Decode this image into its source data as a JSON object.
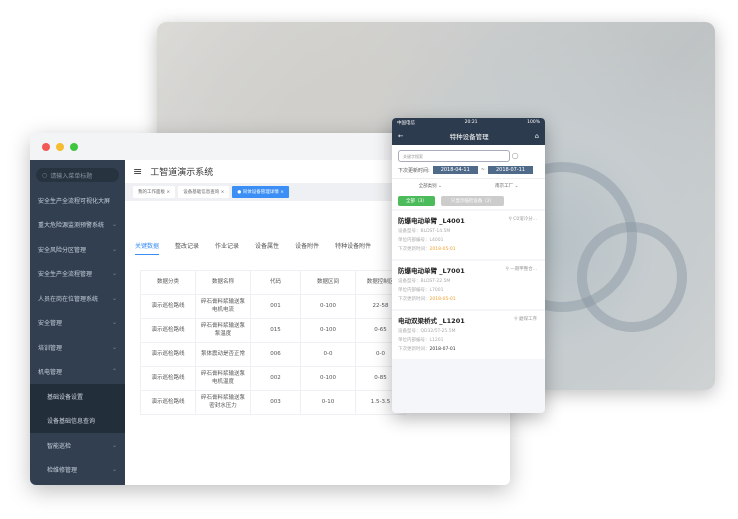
{
  "desktop": {
    "search_placeholder": "请输入菜单标题",
    "menu": [
      {
        "label": "安全生产全流程可视化大屏",
        "chev": ""
      },
      {
        "label": "重大危险源监测预警系统",
        "chev": "⌄"
      },
      {
        "label": "安全风险分区管理",
        "chev": "⌄"
      },
      {
        "label": "安全生产全流程管理",
        "chev": "⌄"
      },
      {
        "label": "人员在岗在位管理系统",
        "chev": "⌄"
      },
      {
        "label": "安全管理",
        "chev": "⌄"
      },
      {
        "label": "培训管理",
        "chev": "⌄"
      },
      {
        "label": "机电管理",
        "chev": "⌃"
      }
    ],
    "submenu": [
      "基础设备设置",
      "设备基础信息查询"
    ],
    "submenu2": [
      {
        "label": "智能巡检",
        "chev": "⌄"
      },
      {
        "label": "检维修管理",
        "chev": "⌄"
      }
    ],
    "title": "工智道演示系统",
    "tabs": [
      "我的工作面板 ×",
      "设备基础信息查询 ×",
      "● 同体设备管理详情 ×"
    ],
    "content_tabs": [
      "关键数据",
      "整改记录",
      "作业记录",
      "设备属性",
      "设备附件",
      "特种设备附件"
    ],
    "table": {
      "headers": [
        "数据分类",
        "数据名称",
        "代码",
        "数据区间",
        "数据控制区"
      ],
      "rows": [
        [
          "演示巡检路线",
          "碎石膏料浆输送泵电机电流",
          "001",
          "0-100",
          "22-58"
        ],
        [
          "演示巡检路线",
          "碎石膏料浆输送泵泵温度",
          "015",
          "0-100",
          "0-65"
        ],
        [
          "演示巡检路线",
          "泵体震动是否正常",
          "006",
          "0-0",
          "0-0"
        ],
        [
          "演示巡检路线",
          "碎石膏料浆输送泵电机温度",
          "002",
          "0-100",
          "0-85"
        ],
        [
          "演示巡检路线",
          "碎石膏料浆输送泵密封水压力",
          "003",
          "0-10",
          "1.5-3.5"
        ]
      ]
    }
  },
  "mobile": {
    "carrier": "中国电信",
    "time": "20:21",
    "battery": "100%",
    "title": "特种设备管理",
    "search_placeholder": "关键字搜索",
    "date_label": "下次更新时间:",
    "date_from": "2018-04-11",
    "date_sep": "~",
    "date_to": "2018-07-11",
    "filter_type": "全部类别 ⌄",
    "filter_site": "南京工厂 ⌄",
    "btn_all": "全部（3）",
    "btn_expired": "只显示临检设备（2）",
    "cards": [
      {
        "title": "防爆电动单臂 _L4001",
        "location": "C0溶冷分...",
        "model": "设备型号：BLDST-14.5M",
        "code": "单位内部编号：L4001",
        "next_label": "下次更新时间：",
        "next": "2018-05-01",
        "next_color": "#f0a030"
      },
      {
        "title": "防爆电动单臂 _L7001",
        "location": "一期甲整合...",
        "model": "设备型号：BLDST-22.5M",
        "code": "单位内部编号：L7001",
        "next_label": "下次更新时间：",
        "next": "2018-05-01",
        "next_color": "#f0a030"
      },
      {
        "title": "电动双梁桥式 _L1201",
        "location": "磨煤工序",
        "model": "设备型号：QD32/5T-25.5M",
        "code": "单位内部编号：L1201",
        "next_label": "下次更新时间：",
        "next": "2018-07-01",
        "next_color": "#333333"
      }
    ]
  },
  "colors": {
    "accent": "#3a8ef6",
    "sidebar": "#313f51",
    "mobile_header": "#2d3b4e",
    "green": "#4cbb5c"
  }
}
